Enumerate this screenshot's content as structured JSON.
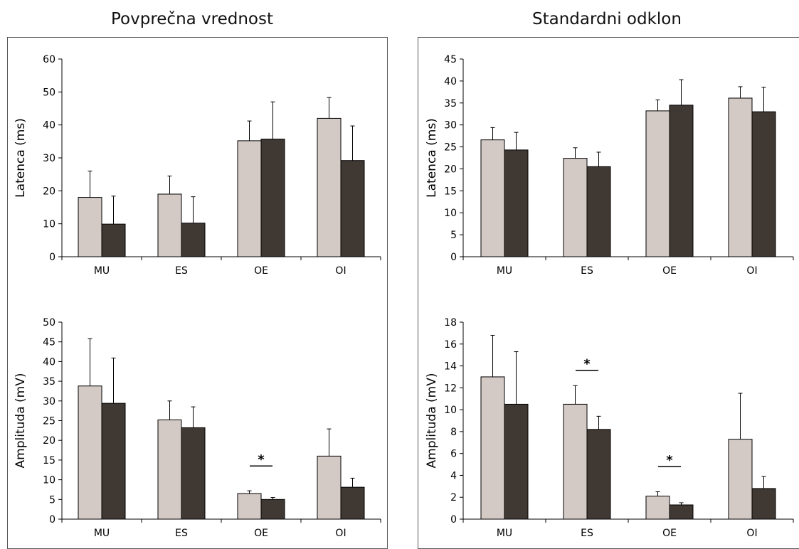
{
  "titles": {
    "left": "Povprečna vrednost",
    "right": "Standardni odklon"
  },
  "colors": {
    "series_a": "#d3cac6",
    "series_b": "#403833",
    "axis": "#000000"
  },
  "chart_data": [
    {
      "type": "bar",
      "panel": "Povprečna vrednost",
      "ylabel": "Latenca (ms)",
      "categories": [
        "MU",
        "ES",
        "OE",
        "OI"
      ],
      "ylim": [
        0,
        60
      ],
      "yticks": [
        0,
        10,
        20,
        30,
        40,
        50,
        60
      ],
      "series": [
        {
          "values": [
            18,
            19,
            35.2,
            42
          ],
          "errors": [
            8,
            5.5,
            6,
            6.3
          ]
        },
        {
          "values": [
            9.9,
            10.2,
            35.7,
            29.2
          ],
          "errors": [
            8.5,
            8,
            11.3,
            10.5
          ]
        }
      ],
      "significance": []
    },
    {
      "type": "bar",
      "panel": "Standardni odklon",
      "ylabel": "Latenca (ms)",
      "categories": [
        "MU",
        "ES",
        "OE",
        "OI"
      ],
      "ylim": [
        0,
        45
      ],
      "yticks": [
        0,
        5,
        10,
        15,
        20,
        25,
        30,
        35,
        40,
        45
      ],
      "series": [
        {
          "values": [
            26.6,
            22.4,
            33.2,
            36.1
          ],
          "errors": [
            2.8,
            2.4,
            2.5,
            2.6
          ]
        },
        {
          "values": [
            24.3,
            20.5,
            34.5,
            33
          ],
          "errors": [
            4,
            3.3,
            5.8,
            5.6
          ]
        }
      ],
      "significance": []
    },
    {
      "type": "bar",
      "panel": "Povprečna vrednost",
      "ylabel": "Amplituda (mV)",
      "categories": [
        "MU",
        "ES",
        "OE",
        "OI"
      ],
      "ylim": [
        0,
        50
      ],
      "yticks": [
        0,
        5,
        10,
        15,
        20,
        25,
        30,
        35,
        40,
        45,
        50
      ],
      "series": [
        {
          "values": [
            33.8,
            25.2,
            6.5,
            16
          ],
          "errors": [
            12,
            4.8,
            0.7,
            6.9
          ]
        },
        {
          "values": [
            29.4,
            23.2,
            5,
            8.1
          ],
          "errors": [
            11.5,
            5.3,
            0.5,
            2.3
          ]
        }
      ],
      "significance": [
        {
          "category": "OE",
          "label": "*",
          "y": 13.5
        }
      ]
    },
    {
      "type": "bar",
      "panel": "Standardni odklon",
      "ylabel": "Amplituda (mV)",
      "categories": [
        "MU",
        "ES",
        "OE",
        "OI"
      ],
      "ylim": [
        0,
        18
      ],
      "yticks": [
        0,
        2,
        4,
        6,
        8,
        10,
        12,
        14,
        16,
        18
      ],
      "series": [
        {
          "values": [
            13,
            10.5,
            2.1,
            7.3
          ],
          "errors": [
            3.8,
            1.7,
            0.4,
            4.2
          ]
        },
        {
          "values": [
            10.5,
            8.2,
            1.3,
            2.8
          ],
          "errors": [
            4.8,
            1.2,
            0.2,
            1.1
          ]
        }
      ],
      "significance": [
        {
          "category": "ES",
          "label": "*",
          "y": 13.6
        },
        {
          "category": "OE",
          "label": "*",
          "y": 4.8
        }
      ]
    }
  ]
}
